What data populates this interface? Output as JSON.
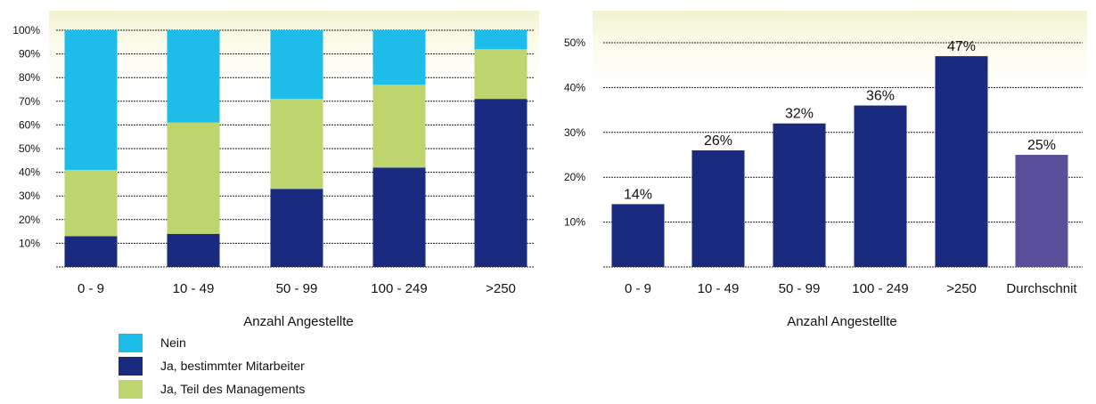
{
  "chart_data": [
    {
      "type": "bar",
      "stacked": true,
      "categories": [
        "0 - 9",
        "10 - 49",
        "50 - 99",
        "100 - 249",
        ">250"
      ],
      "series": [
        {
          "name": "Ja, bestimmter Mitarbeiter",
          "color": "#1a2a7e",
          "values": [
            13,
            14,
            33,
            42,
            71
          ]
        },
        {
          "name": "Ja, Teil des Managements",
          "color": "#bed46e",
          "values": [
            28,
            47,
            38,
            35,
            21
          ]
        },
        {
          "name": "Nein",
          "color": "#1ebde9",
          "values": [
            59,
            39,
            29,
            23,
            8
          ]
        }
      ],
      "ylim": [
        0,
        100
      ],
      "yticks": [
        "10%",
        "20%",
        "30%",
        "40%",
        "50%",
        "60%",
        "70%",
        "80%",
        "90%",
        "100%"
      ],
      "xlabel": "Anzahl Angestellte",
      "ylabel": "",
      "grid": true,
      "legend": {
        "placement": "bottom-left",
        "order": [
          "Nein",
          "Ja, bestimmter Mitarbeiter",
          "Ja, Teil des Managements"
        ]
      }
    },
    {
      "type": "bar",
      "categories": [
        "0 - 9",
        "10 - 49",
        "50 - 99",
        "100 - 249",
        ">250",
        "Durchschnit"
      ],
      "values": [
        14,
        26,
        32,
        36,
        47,
        25
      ],
      "data_labels": [
        "14%",
        "26%",
        "32%",
        "36%",
        "47%",
        "25%"
      ],
      "colors": [
        "#1a2a7e",
        "#1a2a7e",
        "#1a2a7e",
        "#1a2a7e",
        "#1a2a7e",
        "#5a4f9a"
      ],
      "ylim": [
        0,
        55
      ],
      "yticks": [
        "10%",
        "20%",
        "30%",
        "40%",
        "50%"
      ],
      "xlabel": "Anzahl Angestellte",
      "ylabel": "",
      "grid": true
    }
  ]
}
